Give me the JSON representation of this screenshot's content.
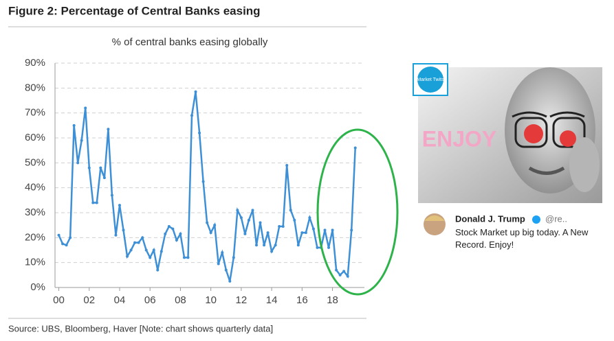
{
  "chart_data": {
    "type": "line",
    "figure_title": "Figure 2: Percentage of Central Banks easing",
    "title": "% of central banks easing globally",
    "source": "Source:  UBS, Bloomberg, Haver [Note: chart shows quarterly data]",
    "color": "#3d8fd6",
    "x": [
      2000,
      2000.25,
      2000.5,
      2000.75,
      2001,
      2001.25,
      2001.5,
      2001.75,
      2002,
      2002.25,
      2002.5,
      2002.75,
      2003,
      2003.25,
      2003.5,
      2003.75,
      2004,
      2004.25,
      2004.5,
      2004.75,
      2005,
      2005.25,
      2005.5,
      2005.75,
      2006,
      2006.25,
      2006.5,
      2006.75,
      2007,
      2007.25,
      2007.5,
      2007.75,
      2008,
      2008.25,
      2008.5,
      2008.75,
      2009,
      2009.25,
      2009.5,
      2009.75,
      2010,
      2010.25,
      2010.5,
      2010.75,
      2011,
      2011.25,
      2011.5,
      2011.75,
      2012,
      2012.25,
      2012.5,
      2012.75,
      2013,
      2013.25,
      2013.5,
      2013.75,
      2014,
      2014.25,
      2014.5,
      2014.75,
      2015,
      2015.25,
      2015.5,
      2015.75,
      2016,
      2016.25,
      2016.5,
      2016.75,
      2017,
      2017.25,
      2017.5,
      2017.75,
      2018,
      2018.25,
      2018.5,
      2018.75,
      2019,
      2019.25,
      2019.5
    ],
    "values": [
      21,
      17.5,
      17,
      20,
      65,
      50,
      59,
      72,
      48,
      34,
      34,
      48,
      44,
      63.5,
      37,
      21,
      33,
      23,
      12.5,
      15,
      18,
      18,
      20,
      15,
      12,
      15,
      7,
      14.5,
      21.5,
      24.5,
      23.5,
      19,
      21.5,
      12,
      12,
      69,
      78.5,
      62,
      42.5,
      26,
      22,
      25,
      9.5,
      14,
      7,
      2.5,
      12,
      31,
      28,
      21.5,
      27,
      31,
      17,
      26,
      17,
      22,
      14.5,
      17,
      24.5,
      24.5,
      49,
      31,
      27,
      17,
      22,
      22,
      28,
      23.5,
      16,
      16,
      23,
      16,
      23,
      7,
      5,
      6.5,
      4.5,
      23,
      56
    ],
    "xlim": [
      1999.75,
      2020.1
    ],
    "xticks": [
      {
        "value": 2000,
        "label": "00"
      },
      {
        "value": 2002,
        "label": "02"
      },
      {
        "value": 2004,
        "label": "04"
      },
      {
        "value": 2006,
        "label": "06"
      },
      {
        "value": 2008,
        "label": "08"
      },
      {
        "value": 2010,
        "label": "10"
      },
      {
        "value": 2012,
        "label": "12"
      },
      {
        "value": 2014,
        "label": "14"
      },
      {
        "value": 2016,
        "label": "16"
      },
      {
        "value": 2018,
        "label": "18"
      }
    ],
    "ylim": [
      0,
      90
    ],
    "yticks": [
      {
        "value": 0,
        "label": "0%"
      },
      {
        "value": 10,
        "label": "10%"
      },
      {
        "value": 20,
        "label": "20%"
      },
      {
        "value": 30,
        "label": "30%"
      },
      {
        "value": 40,
        "label": "40%"
      },
      {
        "value": 50,
        "label": "50%"
      },
      {
        "value": 60,
        "label": "60%"
      },
      {
        "value": 70,
        "label": "70%"
      },
      {
        "value": 80,
        "label": "80%"
      },
      {
        "value": 90,
        "label": "90%"
      }
    ],
    "grid": true
  },
  "meme": {
    "logo": "Market Twits",
    "caption": "ENJOY",
    "tweet": {
      "name": "Donald J. Trump",
      "handle": "@re..",
      "text": "Stock Market up big today. A New Record. Enjoy!"
    }
  }
}
